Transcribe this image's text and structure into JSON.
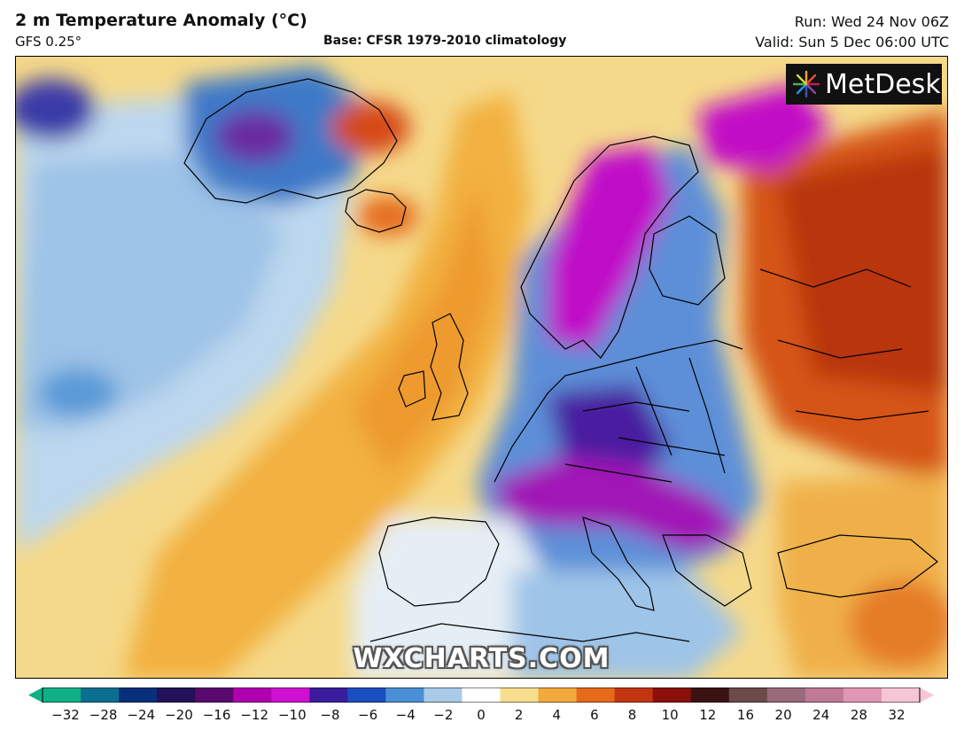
{
  "header": {
    "title": "2 m Temperature Anomaly (°C)",
    "model": "GFS 0.25°",
    "base": "Base: CFSR 1979-2010 climatology",
    "run": "Run: Wed 24 Nov 06Z",
    "valid": "Valid: Sun 5 Dec 06:00 UTC"
  },
  "branding": {
    "logo_text": "MetDesk",
    "logo_icon": "starburst-icon",
    "watermark": "WXCHARTS.COM"
  },
  "colorbar": {
    "ticks": [
      "−32",
      "−28",
      "−24",
      "−20",
      "−16",
      "−12",
      "−10",
      "−8",
      "−6",
      "−4",
      "−2",
      "0",
      "2",
      "4",
      "6",
      "8",
      "10",
      "12",
      "16",
      "20",
      "24",
      "28",
      "32"
    ],
    "colors": [
      "#0fb085",
      "#0c6f8f",
      "#0a2f7a",
      "#23115a",
      "#5a0a6e",
      "#b000b0",
      "#d010d0",
      "#3a1d9e",
      "#1a4fbf",
      "#4a8fd6",
      "#a9cbe8",
      "#ffffff",
      "#f7de8c",
      "#f2a93b",
      "#e56a1a",
      "#c23510",
      "#8b0f0a",
      "#3b1212",
      "#6b4a4a",
      "#9a6a7a",
      "#c07a95",
      "#e296b5",
      "#f6c6d6"
    ]
  },
  "colors": {
    "cold_deep": "#5a0a6e",
    "cold_magenta": "#d010d0",
    "cold_blue": "#2a5fc8",
    "neutral": "#ffffff",
    "warm_yellow": "#f2c04a",
    "warm_orange": "#e5791f",
    "warm_red": "#c0360f"
  }
}
